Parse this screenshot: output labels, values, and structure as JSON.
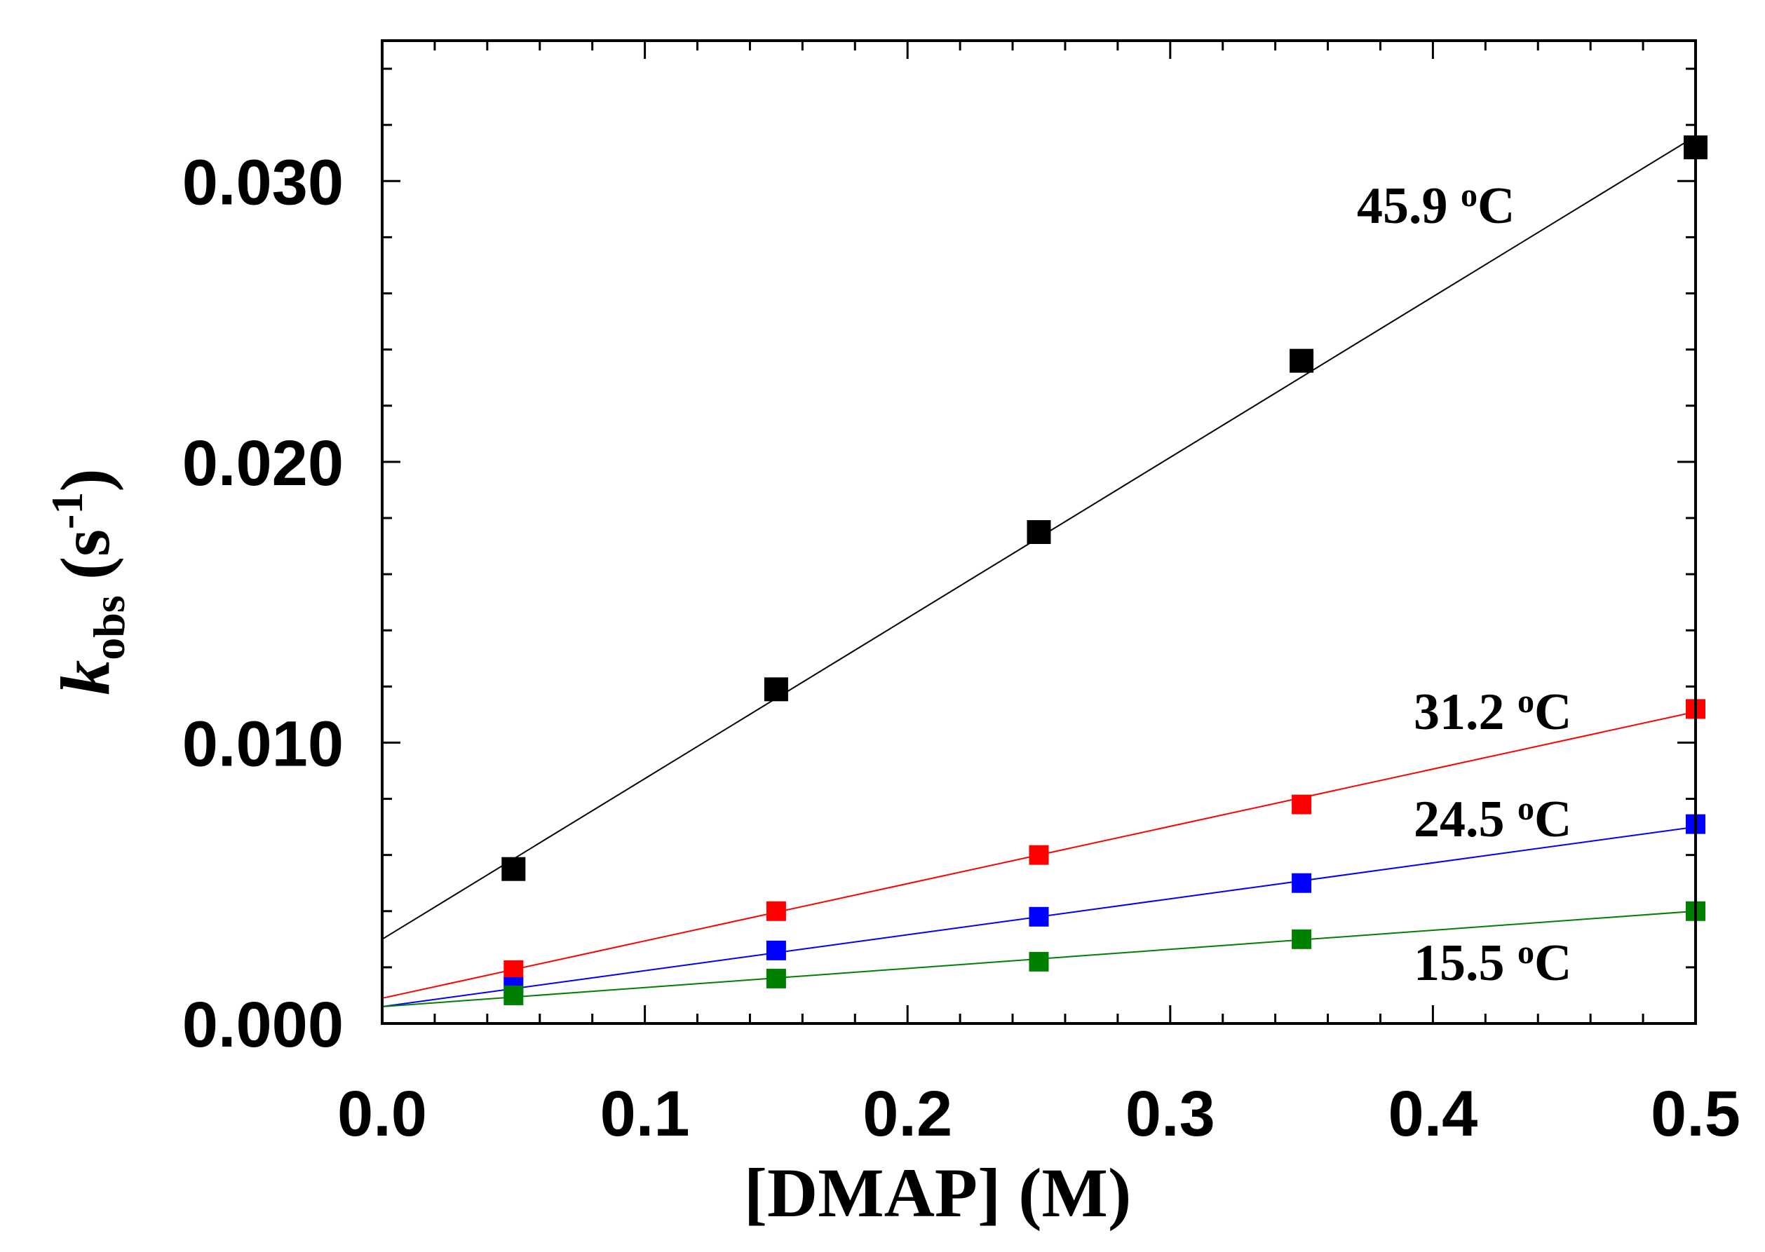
{
  "chart_data": {
    "type": "scatter",
    "xlabel": "[DMAP] (M)",
    "ylabel": {
      "symbol": "k",
      "subscript": "obs",
      "unit_base": "(s",
      "unit_exponent": "-1",
      "unit_close": ")"
    },
    "xlim": [
      0.0,
      0.5
    ],
    "ylim": [
      0.0,
      0.035
    ],
    "x_ticks": [
      0.0,
      0.1,
      0.2,
      0.3,
      0.4,
      0.5
    ],
    "x_tick_labels": [
      "0.0",
      "0.1",
      "0.2",
      "0.3",
      "0.4",
      "0.5"
    ],
    "y_ticks": [
      0.0,
      0.01,
      0.02,
      0.03
    ],
    "y_tick_labels": [
      "0.000",
      "0.010",
      "0.020",
      "0.030"
    ],
    "grid": false,
    "series": [
      {
        "name": "45.9 °C",
        "label": {
          "value": "45.9",
          "degree": "o",
          "unit": "C"
        },
        "color": "#000000",
        "x": [
          0.05,
          0.15,
          0.25,
          0.35,
          0.5
        ],
        "y": [
          0.0055,
          0.0119,
          0.0175,
          0.0236,
          0.0312
        ],
        "fit": {
          "intercept": 0.003,
          "slope": 0.0572
        }
      },
      {
        "name": "31.2 °C",
        "label": {
          "value": "31.2",
          "degree": "o",
          "unit": "C"
        },
        "color": "#ff0000",
        "x": [
          0.05,
          0.15,
          0.25,
          0.35,
          0.5
        ],
        "y": [
          0.0019,
          0.004,
          0.006,
          0.0078,
          0.0112
        ],
        "fit": {
          "intercept": 0.0009,
          "slope": 0.0204
        }
      },
      {
        "name": "24.5 °C",
        "label": {
          "value": "24.5",
          "degree": "o",
          "unit": "C"
        },
        "color": "#0000ff",
        "x": [
          0.05,
          0.15,
          0.25,
          0.35,
          0.5
        ],
        "y": [
          0.0013,
          0.0026,
          0.0038,
          0.005,
          0.0071
        ],
        "fit": {
          "intercept": 0.0006,
          "slope": 0.0128
        }
      },
      {
        "name": "15.5 °C",
        "label": {
          "value": "15.5",
          "degree": "o",
          "unit": "C"
        },
        "color": "#008000",
        "x": [
          0.05,
          0.15,
          0.25,
          0.35,
          0.5
        ],
        "y": [
          0.001,
          0.0016,
          0.0022,
          0.003,
          0.004
        ],
        "fit": {
          "intercept": 0.0006,
          "slope": 0.0068
        }
      }
    ]
  }
}
